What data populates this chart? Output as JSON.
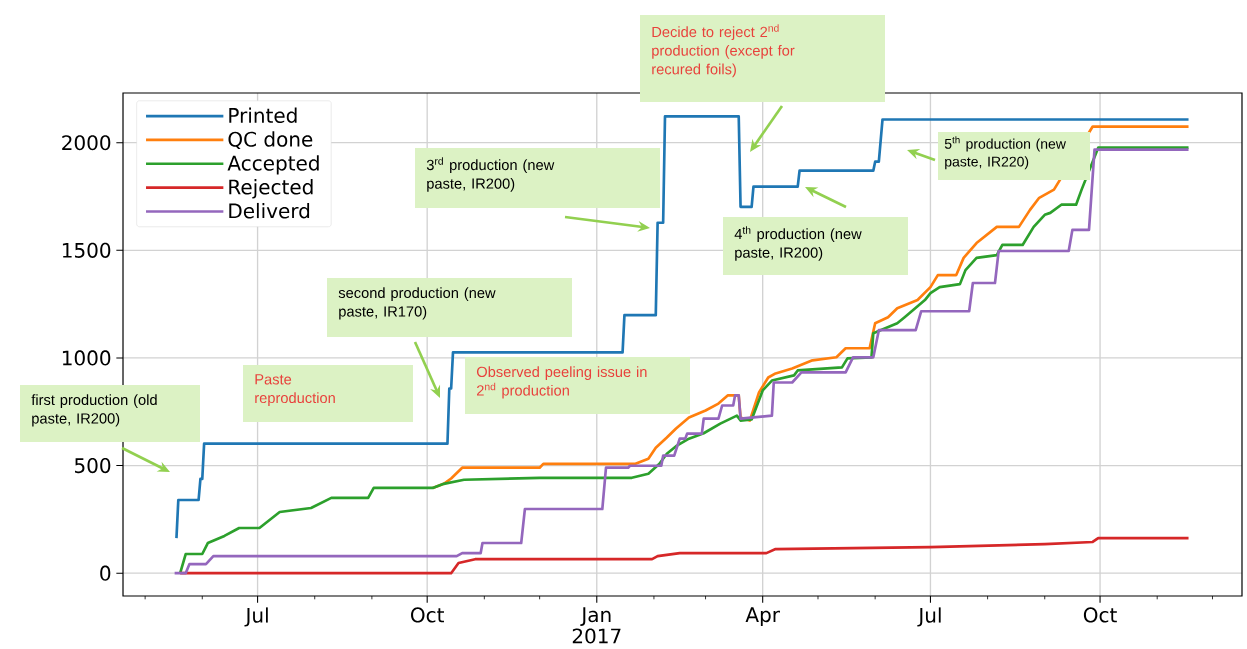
{
  "chart_data": {
    "type": "line",
    "xlim": [
      "2016-04-19",
      "2017-12-17"
    ],
    "ylim": [
      -106,
      2231
    ],
    "xticks": [
      {
        "value": "2016-05-01",
        "label": null
      },
      {
        "value": "2016-06-01",
        "label": null
      },
      {
        "value": "2016-07-01",
        "label": "Jul"
      },
      {
        "value": "2016-08-01",
        "label": null
      },
      {
        "value": "2016-09-01",
        "label": null
      },
      {
        "value": "2016-10-01",
        "label": "Oct"
      },
      {
        "value": "2016-11-01",
        "label": null
      },
      {
        "value": "2016-12-01",
        "label": null
      },
      {
        "value": "2017-01-01",
        "label": "Jan 2017"
      },
      {
        "value": "2017-02-01",
        "label": null
      },
      {
        "value": "2017-03-01",
        "label": null
      },
      {
        "value": "2017-04-01",
        "label": "Apr"
      },
      {
        "value": "2017-05-01",
        "label": null
      },
      {
        "value": "2017-06-01",
        "label": null
      },
      {
        "value": "2017-07-01",
        "label": "Jul"
      },
      {
        "value": "2017-08-01",
        "label": null
      },
      {
        "value": "2017-09-01",
        "label": null
      },
      {
        "value": "2017-10-01",
        "label": "Oct"
      },
      {
        "value": "2017-11-01",
        "label": null
      },
      {
        "value": "2017-12-01",
        "label": null
      }
    ],
    "yticks": [
      0,
      500,
      1000,
      1500,
      2000
    ],
    "grid": true,
    "legend": "top left",
    "series": [
      {
        "name": "Printed",
        "color": "#1f77b4",
        "x": [
          "2016-05-18",
          "2016-05-19",
          "2016-05-30",
          "2016-05-31",
          "2016-06-01",
          "2016-06-02",
          "2016-10-12",
          "2016-10-13",
          "2016-10-14",
          "2016-10-15",
          "2017-01-15",
          "2017-01-16",
          "2017-02-02",
          "2017-02-03",
          "2017-02-06",
          "2017-02-07",
          "2017-03-19",
          "2017-03-20",
          "2017-03-26",
          "2017-03-27",
          "2017-04-20",
          "2017-04-21",
          "2017-05-31",
          "2017-06-01",
          "2017-06-03",
          "2017-06-05",
          "2017-11-18"
        ],
        "values": [
          163,
          340,
          340,
          438,
          438,
          602,
          602,
          858,
          858,
          1026,
          1026,
          1199,
          1199,
          1628,
          1628,
          2122,
          2122,
          1702,
          1702,
          1796,
          1796,
          1870,
          1870,
          1912,
          1912,
          2108,
          2108
        ]
      },
      {
        "name": "QC done",
        "color": "#ff7f0e",
        "x": [
          "2016-10-04",
          "2016-10-10",
          "2016-10-14",
          "2016-10-20",
          "2016-12-01",
          "2016-12-03",
          "2017-01-22",
          "2017-01-29",
          "2017-02-02",
          "2017-02-08",
          "2017-02-13",
          "2017-02-20",
          "2017-03-01",
          "2017-03-08",
          "2017-03-13",
          "2017-03-19",
          "2017-03-20",
          "2017-03-25",
          "2017-03-30",
          "2017-04-04",
          "2017-04-08",
          "2017-04-17",
          "2017-04-28",
          "2017-05-11",
          "2017-05-16",
          "2017-05-29",
          "2017-06-01",
          "2017-06-08",
          "2017-06-13",
          "2017-06-24",
          "2017-07-01",
          "2017-07-05",
          "2017-07-15",
          "2017-07-19",
          "2017-07-26",
          "2017-08-06",
          "2017-08-18",
          "2017-08-24",
          "2017-08-29",
          "2017-09-06",
          "2017-09-27",
          "2017-11-18"
        ],
        "values": [
          396,
          415,
          440,
          490,
          490,
          508,
          508,
          532,
          583,
          630,
          672,
          723,
          756,
          788,
          826,
          826,
          723,
          709,
          840,
          909,
          928,
          951,
          989,
          1003,
          1045,
          1045,
          1161,
          1189,
          1231,
          1269,
          1329,
          1385,
          1385,
          1465,
          1534,
          1609,
          1609,
          1688,
          1744,
          1782,
          2075,
          2075
        ]
      },
      {
        "name": "Accepted",
        "color": "#2ca02c",
        "x": [
          "2016-05-20",
          "2016-05-23",
          "2016-06-01",
          "2016-06-04",
          "2016-06-13",
          "2016-06-21",
          "2016-07-02",
          "2016-07-13",
          "2016-07-30",
          "2016-08-10",
          "2016-08-30",
          "2016-09-02",
          "2016-10-04",
          "2016-10-10",
          "2016-10-21",
          "2016-12-01",
          "2017-01-20",
          "2017-01-29",
          "2017-02-04",
          "2017-02-08",
          "2017-02-13",
          "2017-02-20",
          "2017-02-28",
          "2017-03-09",
          "2017-03-18",
          "2017-03-20",
          "2017-03-26",
          "2017-04-01",
          "2017-04-06",
          "2017-04-18",
          "2017-04-20",
          "2017-05-14",
          "2017-05-17",
          "2017-05-30",
          "2017-05-31",
          "2017-06-13",
          "2017-06-17",
          "2017-06-28",
          "2017-07-01",
          "2017-07-06",
          "2017-07-17",
          "2017-07-20",
          "2017-07-26",
          "2017-08-06",
          "2017-08-09",
          "2017-08-20",
          "2017-08-26",
          "2017-09-01",
          "2017-09-04",
          "2017-09-10",
          "2017-09-18",
          "2017-09-21",
          "2017-09-30",
          "2017-11-18"
        ],
        "values": [
          0,
          89,
          89,
          140,
          173,
          210,
          210,
          284,
          303,
          350,
          350,
          396,
          396,
          415,
          434,
          443,
          443,
          462,
          508,
          555,
          590,
          625,
          650,
          695,
          732,
          709,
          714,
          849,
          895,
          919,
          942,
          956,
          998,
          1003,
          1115,
          1161,
          1189,
          1269,
          1301,
          1329,
          1343,
          1408,
          1465,
          1478,
          1525,
          1525,
          1609,
          1665,
          1674,
          1712,
          1712,
          1782,
          1977,
          1977
        ]
      },
      {
        "name": "Rejected",
        "color": "#d62728",
        "x": [
          "2016-05-20",
          "2016-10-14",
          "2016-10-18",
          "2016-10-27",
          "2017-01-31",
          "2017-02-03",
          "2017-02-15",
          "2017-04-03",
          "2017-04-08",
          "2017-07-01",
          "2017-08-01",
          "2017-09-01",
          "2017-09-27",
          "2017-09-30",
          "2017-11-18"
        ],
        "values": [
          0,
          0,
          47,
          65,
          65,
          79,
          93,
          93,
          112,
          121,
          128,
          135,
          145,
          163,
          163
        ]
      },
      {
        "name": "Deliverd",
        "color": "#9467bd",
        "x": [
          "2016-05-17",
          "2016-05-23",
          "2016-05-25",
          "2016-06-03",
          "2016-06-07",
          "2016-10-17",
          "2016-10-20",
          "2016-10-30",
          "2016-10-31",
          "2016-11-21",
          "2016-11-23",
          "2017-01-04",
          "2017-01-06",
          "2017-01-18",
          "2017-01-19",
          "2017-02-05",
          "2017-02-06",
          "2017-02-12",
          "2017-02-15",
          "2017-02-18",
          "2017-02-19",
          "2017-02-27",
          "2017-02-28",
          "2017-03-08",
          "2017-03-10",
          "2017-03-16",
          "2017-03-17",
          "2017-03-19",
          "2017-03-20",
          "2017-04-06",
          "2017-04-07",
          "2017-04-17",
          "2017-04-22",
          "2017-05-16",
          "2017-05-20",
          "2017-05-31",
          "2017-06-03",
          "2017-06-23",
          "2017-06-26",
          "2017-07-22",
          "2017-07-24",
          "2017-08-05",
          "2017-08-07",
          "2017-09-14",
          "2017-09-16",
          "2017-09-25",
          "2017-09-28",
          "2017-11-18"
        ],
        "values": [
          0,
          0,
          42,
          42,
          79,
          79,
          93,
          93,
          140,
          140,
          298,
          298,
          490,
          490,
          499,
          499,
          546,
          546,
          625,
          625,
          648,
          648,
          718,
          718,
          779,
          779,
          826,
          826,
          718,
          732,
          886,
          886,
          933,
          933,
          1003,
          1003,
          1129,
          1129,
          1217,
          1217,
          1348,
          1348,
          1497,
          1497,
          1595,
          1595,
          1968,
          1968
        ]
      }
    ],
    "annotations": [
      "first production (old paste, IR200)",
      "Paste reproduction",
      "second production (new paste, IR170)",
      "Observed peeling issue in 2$^{nd}$ production",
      "3$^{rd}$ production (new paste, IR200)",
      "Decide to reject 2$^{nd}$ production (except for recured foils)",
      "4$^{th}$ production (new paste, IR200)",
      "5$^{th}$ production (new paste, IR220)"
    ]
  }
}
